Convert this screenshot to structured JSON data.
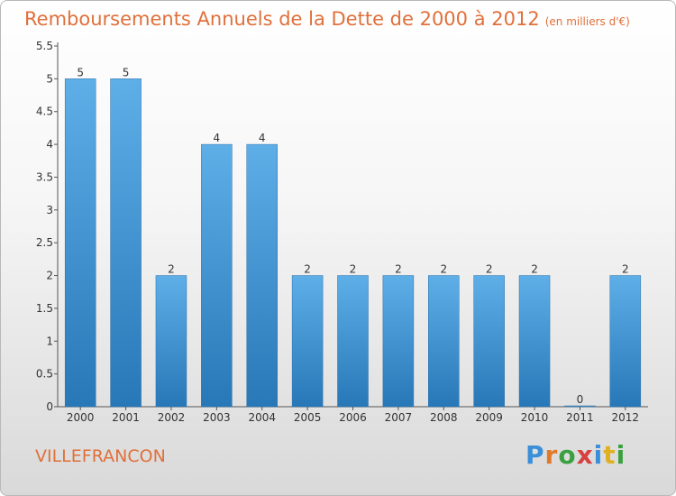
{
  "title": "Remboursements Annuels de la Dette de 2000 à 2012",
  "subtitle": "(en milliers d'€)",
  "commune": "VILLEFRANCON",
  "logo": "Proxiti",
  "colors": {
    "title": "#e0703a",
    "bar_top": "#5eaee8",
    "bar_bottom": "#2878b8"
  },
  "chart_data": {
    "type": "bar",
    "categories": [
      "2000",
      "2001",
      "2002",
      "2003",
      "2004",
      "2005",
      "2006",
      "2007",
      "2008",
      "2009",
      "2010",
      "2011",
      "2012"
    ],
    "values": [
      5,
      5,
      2,
      4,
      4,
      2,
      2,
      2,
      2,
      2,
      2,
      0,
      2
    ],
    "ylim": [
      0,
      5.5
    ],
    "yticks": [
      "0",
      "0.5",
      "1",
      "1.5",
      "2",
      "2.5",
      "3",
      "3.5",
      "4",
      "4.5",
      "5",
      "5.5"
    ],
    "grid": false
  }
}
